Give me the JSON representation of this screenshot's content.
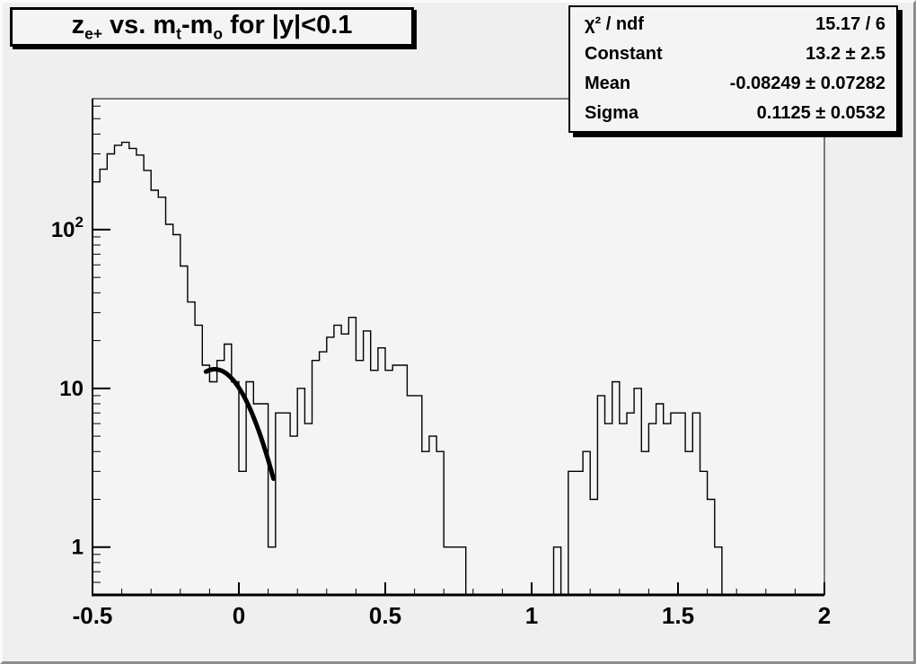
{
  "app": "root-canvas-histogram",
  "colors": {
    "canvas_background": "#efefef",
    "frame_background": "#f4f4f4",
    "line_color": "#000000",
    "fit_color": "#000000",
    "border_light": "#fbfbfb",
    "border_dark": "#8e8e8e"
  },
  "title": {
    "plain": "z_e+ vs. m_t-m_o for |y|<0.1",
    "parts": [
      {
        "text": "z"
      },
      {
        "sub": "e+"
      },
      {
        "text": " vs. m"
      },
      {
        "sub": "t"
      },
      {
        "text": "-m"
      },
      {
        "sub": "o"
      },
      {
        "text": " for |y|<0.1"
      }
    ]
  },
  "stats": {
    "rows": [
      {
        "label": "χ² / ndf",
        "value": "15.17 / 6"
      },
      {
        "label": "Constant",
        "value": "13.2 ± 2.5"
      },
      {
        "label": "Mean",
        "value": "-0.08249 ± 0.07282"
      },
      {
        "label": "Sigma",
        "value": "0.1125 ± 0.0532"
      }
    ]
  },
  "chart_data": {
    "type": "bar",
    "style": "step-histogram",
    "title": "z_e+ vs. m_t-m_o for |y|<0.1",
    "xlabel": "",
    "ylabel": "",
    "x_axis": {
      "min": -0.5,
      "max": 2.0,
      "major_tick_step": 0.5,
      "minor_tick_step": 0.1,
      "tick_labels": [
        "-0.5",
        "0",
        "0.5",
        "1",
        "1.5",
        "2"
      ]
    },
    "y_axis": {
      "scale": "log",
      "display_min": 0.5,
      "display_max": 668,
      "major_ticks": [
        1,
        10,
        100
      ],
      "tick_labels": [
        "1",
        "10",
        "10^2"
      ]
    },
    "grid": false,
    "legend": false,
    "bin_start": -0.5,
    "bin_width": 0.025,
    "values": [
      200,
      240,
      300,
      340,
      355,
      325,
      295,
      236,
      177,
      160,
      108,
      93,
      59,
      35,
      25,
      14,
      11,
      15,
      19,
      11,
      3,
      11,
      8,
      8,
      1,
      7,
      7,
      5,
      10,
      6,
      15,
      17,
      21,
      25,
      22,
      28,
      15,
      23,
      13,
      18,
      13,
      14,
      14,
      9,
      9,
      4,
      5,
      4,
      1,
      1,
      1,
      0,
      0,
      0,
      0,
      0,
      0,
      0,
      0,
      0,
      0,
      0,
      0,
      1,
      0,
      3,
      3,
      4,
      2,
      9,
      6,
      11,
      6,
      7,
      10,
      4,
      6,
      8,
      6,
      7,
      7,
      4,
      7,
      3,
      2,
      1,
      0,
      0,
      0,
      0,
      0,
      0,
      0,
      0,
      0,
      0,
      0,
      0,
      0,
      0
    ],
    "fit": {
      "function": "gaussian",
      "constant": 13.2,
      "mean": -0.08249,
      "sigma": 0.1125,
      "draw_range": [
        -0.1125,
        0.118
      ],
      "line_width": 5
    }
  }
}
